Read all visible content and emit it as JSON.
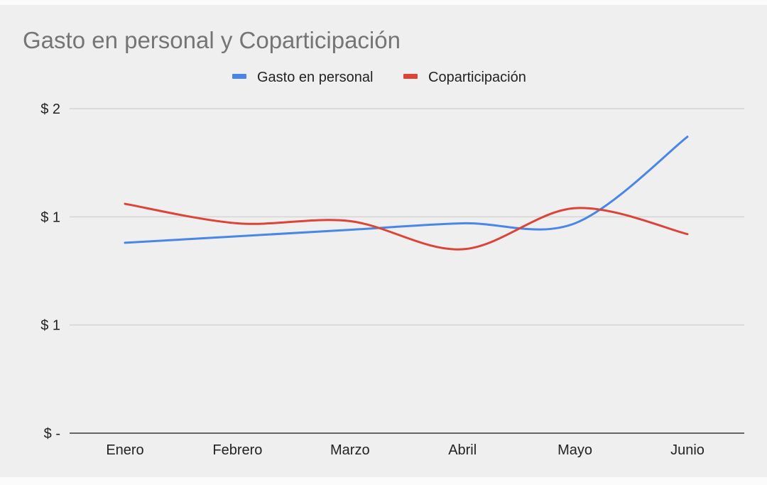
{
  "chart_data": {
    "type": "line",
    "title": "Gasto en personal y Coparticipación",
    "xlabel": "",
    "ylabel": "",
    "categories": [
      "Enero",
      "Febrero",
      "Marzo",
      "Abril",
      "Mayo",
      "Junio"
    ],
    "y_ticks": [
      {
        "value": 0,
        "label": "$ -"
      },
      {
        "value": 0.5,
        "label": "$ 1"
      },
      {
        "value": 1.0,
        "label": "$ 1"
      },
      {
        "value": 1.5,
        "label": "$ 2"
      }
    ],
    "ylim": [
      0,
      1.5
    ],
    "grid": true,
    "smooth": true,
    "legend_position": "top",
    "series": [
      {
        "name": "Gasto en personal",
        "color": "#4a86e8",
        "values": [
          0.88,
          0.91,
          0.94,
          0.97,
          0.97,
          1.37
        ]
      },
      {
        "name": "Coparticipación",
        "color": "#db4437",
        "values": [
          1.06,
          0.97,
          0.98,
          0.85,
          1.04,
          0.92
        ]
      }
    ]
  }
}
